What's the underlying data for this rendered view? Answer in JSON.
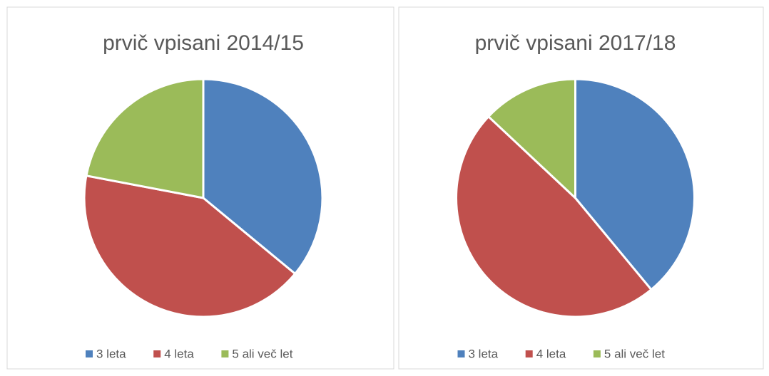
{
  "chart_data": [
    {
      "type": "pie",
      "title": "prvič vpisani 2014/15",
      "categories": [
        "3 leta",
        "4 leta",
        "5 ali več let"
      ],
      "values": [
        36,
        42,
        22
      ],
      "colors": [
        "#4f81bd",
        "#c0504d",
        "#9bbb59"
      ],
      "legend": "bottom"
    },
    {
      "type": "pie",
      "title": "prvič vpisani 2017/18",
      "categories": [
        "3 leta",
        "4 leta",
        "5 ali več let"
      ],
      "values": [
        39,
        48,
        13
      ],
      "colors": [
        "#4f81bd",
        "#c0504d",
        "#9bbb59"
      ],
      "legend": "bottom"
    }
  ]
}
